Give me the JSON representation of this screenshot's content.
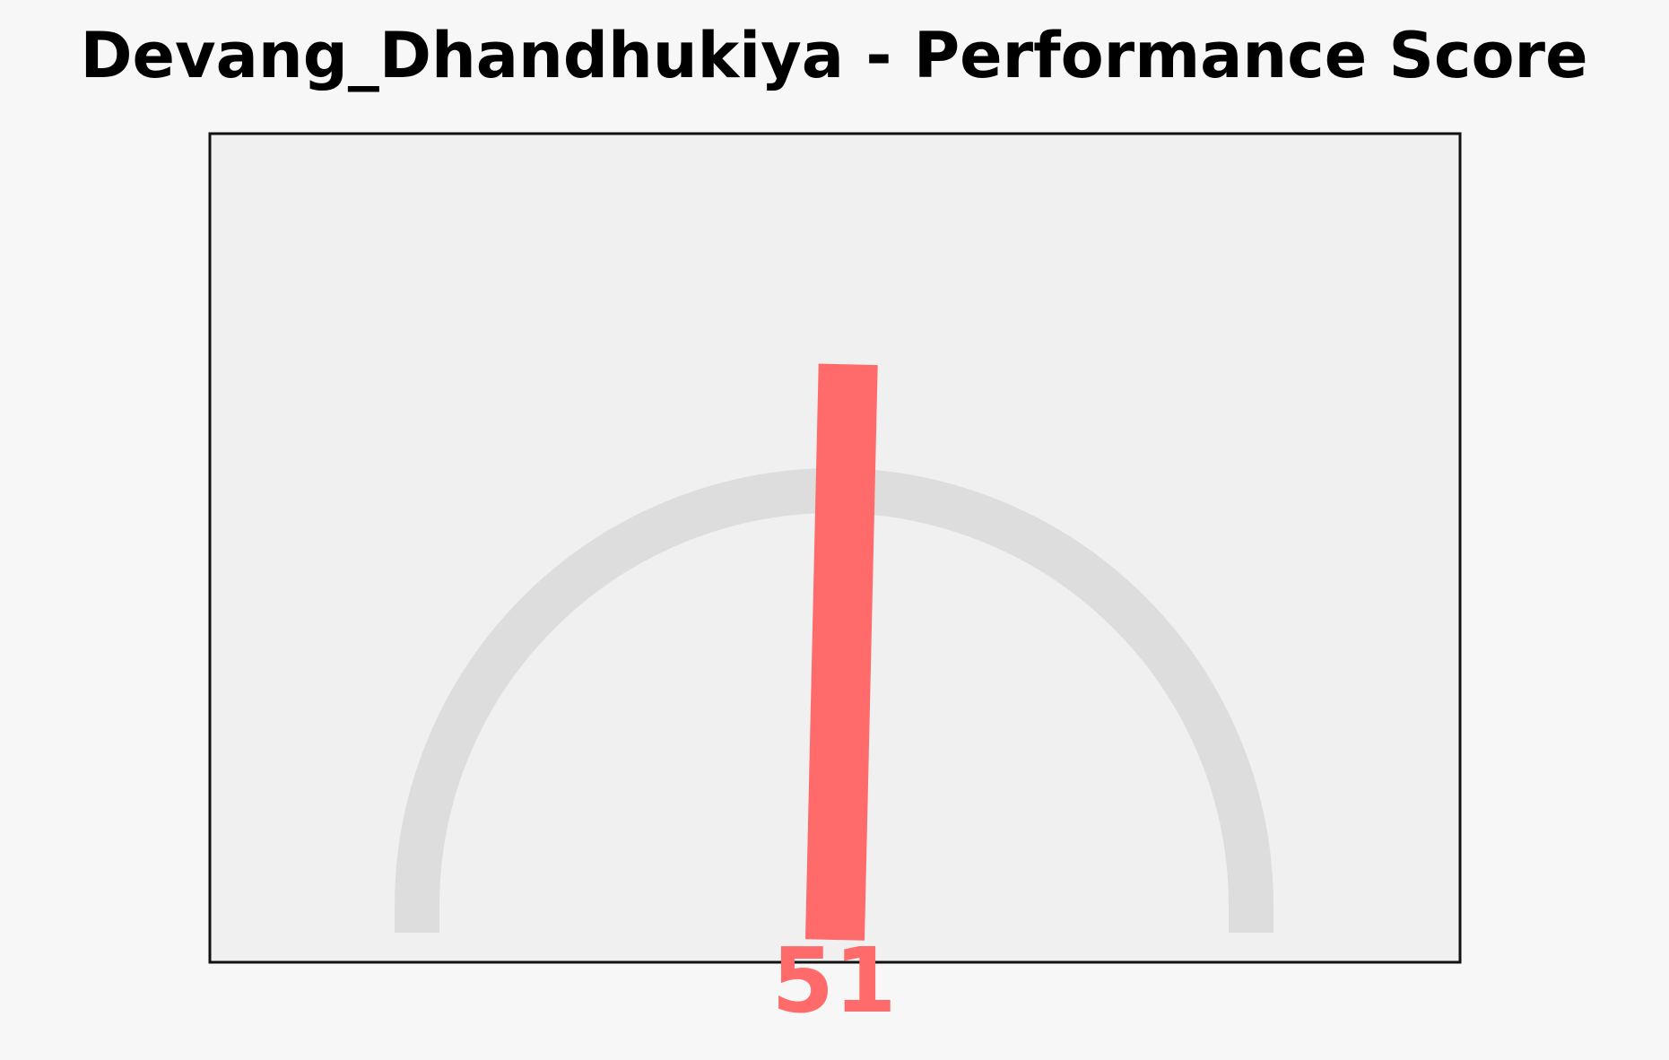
{
  "chart_data": {
    "type": "gauge",
    "title": "Devang_Dhandhukiya - Performance Score",
    "value": 51,
    "value_label": "51",
    "range": [
      0,
      100
    ],
    "colors": {
      "background": "#f7f7f7",
      "plot_area": "#f0f0f0",
      "plot_border": "#111111",
      "track": "#dddddd",
      "needle": "#ff6b6b",
      "value_text": "#ff6b6b"
    }
  }
}
